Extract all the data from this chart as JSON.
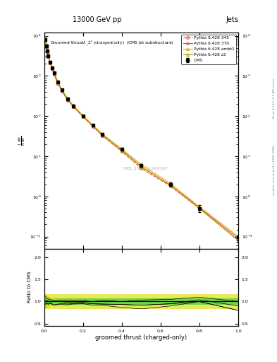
{
  "title_top": "13000 GeV pp",
  "title_right": "Jets",
  "xlabel": "groomed thrust (charged-only)",
  "ylabel_ratio": "Ratio to CMS",
  "right_label": "Rivet 3.1.10, ≥ 3.4M events",
  "right_label2": "mcplots.cern.ch [arXiv:1306.3436]",
  "watermark": "CMS_2021_I1920187",
  "cms_x": [
    0.005,
    0.01,
    0.015,
    0.02,
    0.03,
    0.04,
    0.05,
    0.07,
    0.09,
    0.12,
    0.15,
    0.2,
    0.25,
    0.3,
    0.4,
    0.5,
    0.65,
    0.8,
    1.0
  ],
  "cms_y": [
    8000,
    5500,
    4200,
    3200,
    2200,
    1600,
    1200,
    700,
    450,
    270,
    180,
    100,
    60,
    35,
    15,
    6,
    2,
    0.5,
    0.1
  ],
  "cms_yerr": [
    400,
    300,
    200,
    160,
    110,
    80,
    60,
    35,
    22,
    14,
    9,
    5,
    3,
    2,
    1,
    0.5,
    0.2,
    0.1,
    0.05
  ],
  "p345_x": [
    0.005,
    0.01,
    0.015,
    0.02,
    0.03,
    0.04,
    0.05,
    0.07,
    0.09,
    0.12,
    0.15,
    0.2,
    0.25,
    0.3,
    0.4,
    0.5,
    0.65,
    0.8,
    1.0
  ],
  "p345_y": [
    7500,
    5200,
    4000,
    3000,
    2100,
    1500,
    1100,
    650,
    420,
    250,
    170,
    95,
    55,
    32,
    13,
    5,
    1.8,
    0.5,
    0.08
  ],
  "p370_x": [
    0.005,
    0.01,
    0.015,
    0.02,
    0.03,
    0.04,
    0.05,
    0.07,
    0.09,
    0.12,
    0.15,
    0.2,
    0.25,
    0.3,
    0.4,
    0.5,
    0.65,
    0.8,
    1.0
  ],
  "p370_y": [
    7600,
    5300,
    4050,
    3050,
    2130,
    1520,
    1110,
    660,
    430,
    255,
    172,
    97,
    57,
    33,
    14,
    5.5,
    1.9,
    0.52,
    0.09
  ],
  "pambt1_x": [
    0.005,
    0.01,
    0.015,
    0.02,
    0.03,
    0.04,
    0.05,
    0.07,
    0.09,
    0.12,
    0.15,
    0.2,
    0.25,
    0.3,
    0.4,
    0.5,
    0.65,
    0.8,
    1.0
  ],
  "pambt1_y": [
    9000,
    6000,
    4500,
    3400,
    2300,
    1650,
    1230,
    720,
    460,
    275,
    183,
    102,
    60,
    36,
    15,
    6.2,
    2.1,
    0.55,
    0.1
  ],
  "pz2_x": [
    0.005,
    0.01,
    0.015,
    0.02,
    0.03,
    0.04,
    0.05,
    0.07,
    0.09,
    0.12,
    0.15,
    0.2,
    0.25,
    0.3,
    0.4,
    0.5,
    0.65,
    0.8,
    1.0
  ],
  "pz2_y": [
    8200,
    5600,
    4250,
    3250,
    2200,
    1600,
    1200,
    700,
    450,
    265,
    175,
    98,
    57,
    33,
    14,
    5.5,
    1.9,
    0.5,
    0.08
  ],
  "ratio_green_lo": 0.93,
  "ratio_green_hi": 1.07,
  "ratio_yellow_lo": 0.83,
  "ratio_yellow_hi": 1.17,
  "xlim": [
    0.0,
    1.0
  ],
  "ylim_main": [
    0.05,
    12000
  ],
  "ylim_ratio": [
    0.45,
    2.2
  ],
  "color_cms": "#000000",
  "color_p345": "#e05050",
  "color_p370": "#e05050",
  "color_pambt1": "#e8a000",
  "color_pz2": "#a0a000",
  "color_green_band": "#44cc44",
  "color_yellow_band": "#dddd00",
  "legend_labels": [
    "CMS",
    "Pythia 6.428 345",
    "Pythia 6.428 370",
    "Pythia 6.428 ambt1",
    "Pythia 6.428 z2"
  ]
}
